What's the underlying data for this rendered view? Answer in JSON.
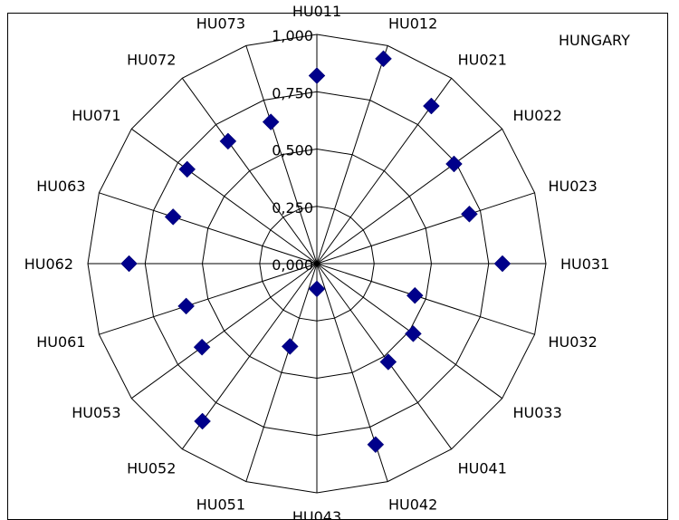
{
  "chart_data": {
    "type": "radar",
    "title": "HUNGARY",
    "categories": [
      "HU011",
      "HU012",
      "HU021",
      "HU022",
      "HU023",
      "HU031",
      "HU032",
      "HU033",
      "HU041",
      "HU042",
      "HU043",
      "HU051",
      "HU052",
      "HU053",
      "HU061",
      "HU062",
      "HU063",
      "HU071",
      "HU072",
      "HU073"
    ],
    "series": [
      {
        "name": "",
        "color": "#00008b",
        "marker": "diamond",
        "values": [
          0.82,
          0.94,
          0.85,
          0.74,
          0.7,
          0.81,
          0.45,
          0.52,
          0.53,
          0.83,
          0.11,
          0.38,
          0.85,
          0.62,
          0.6,
          0.82,
          0.66,
          0.7,
          0.66,
          0.65
        ]
      }
    ],
    "rlim": [
      0,
      1
    ],
    "radial_ticks": [
      "0,000",
      "0,250",
      "0,500",
      "0,750",
      "1,000"
    ],
    "grid": true,
    "legend": "none"
  }
}
